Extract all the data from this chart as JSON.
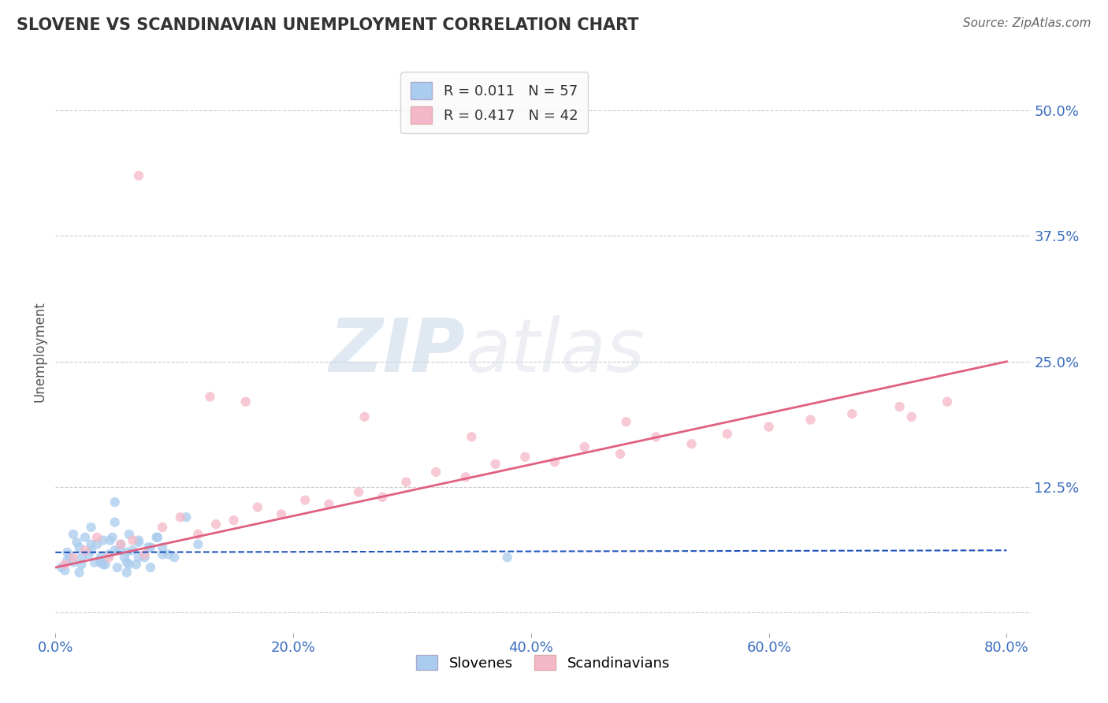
{
  "title": "SLOVENE VS SCANDINAVIAN UNEMPLOYMENT CORRELATION CHART",
  "source": "Source: ZipAtlas.com",
  "ylabel": "Unemployment",
  "yticks": [
    0.0,
    0.125,
    0.25,
    0.375,
    0.5
  ],
  "ytick_labels": [
    "",
    "12.5%",
    "25.0%",
    "37.5%",
    "50.0%"
  ],
  "xlim": [
    0.0,
    0.82
  ],
  "ylim": [
    -0.02,
    0.54
  ],
  "blue_scatter_color": "#aaccee",
  "pink_scatter_color": "#f5b8c8",
  "blue_line_color": "#2255bb",
  "pink_line_color": "#e06080",
  "axis_tick_color": "#3a6dbf",
  "R_slovene": 0.011,
  "N_slovene": 57,
  "R_scandinavian": 0.417,
  "N_scandinavian": 42,
  "slovene_x": [
    0.005,
    0.01,
    0.012,
    0.015,
    0.018,
    0.02,
    0.022,
    0.025,
    0.028,
    0.03,
    0.033,
    0.035,
    0.038,
    0.04,
    0.042,
    0.045,
    0.048,
    0.05,
    0.052,
    0.055,
    0.058,
    0.06,
    0.062,
    0.065,
    0.068,
    0.07,
    0.075,
    0.08,
    0.085,
    0.09,
    0.008,
    0.015,
    0.022,
    0.03,
    0.038,
    0.046,
    0.054,
    0.062,
    0.07,
    0.078,
    0.086,
    0.095,
    0.01,
    0.02,
    0.03,
    0.04,
    0.05,
    0.06,
    0.07,
    0.08,
    0.09,
    0.1,
    0.11,
    0.12,
    0.38,
    0.05,
    0.06
  ],
  "slovene_y": [
    0.045,
    0.06,
    0.055,
    0.05,
    0.07,
    0.065,
    0.048,
    0.075,
    0.058,
    0.062,
    0.05,
    0.068,
    0.055,
    0.072,
    0.048,
    0.058,
    0.075,
    0.062,
    0.045,
    0.068,
    0.055,
    0.05,
    0.078,
    0.062,
    0.048,
    0.07,
    0.055,
    0.065,
    0.075,
    0.058,
    0.042,
    0.078,
    0.055,
    0.068,
    0.05,
    0.072,
    0.062,
    0.048,
    0.055,
    0.065,
    0.075,
    0.058,
    0.052,
    0.04,
    0.085,
    0.048,
    0.09,
    0.06,
    0.072,
    0.045,
    0.065,
    0.055,
    0.095,
    0.068,
    0.055,
    0.11,
    0.04
  ],
  "scand_x": [
    0.008,
    0.015,
    0.025,
    0.035,
    0.045,
    0.055,
    0.065,
    0.075,
    0.09,
    0.105,
    0.12,
    0.135,
    0.15,
    0.17,
    0.19,
    0.21,
    0.23,
    0.255,
    0.275,
    0.295,
    0.32,
    0.345,
    0.37,
    0.395,
    0.42,
    0.445,
    0.475,
    0.505,
    0.535,
    0.565,
    0.6,
    0.635,
    0.67,
    0.71,
    0.75,
    0.26,
    0.16,
    0.35,
    0.48,
    0.72,
    0.07,
    0.13
  ],
  "scand_y": [
    0.048,
    0.055,
    0.062,
    0.075,
    0.055,
    0.068,
    0.072,
    0.058,
    0.085,
    0.095,
    0.078,
    0.088,
    0.092,
    0.105,
    0.098,
    0.112,
    0.108,
    0.12,
    0.115,
    0.13,
    0.14,
    0.135,
    0.148,
    0.155,
    0.15,
    0.165,
    0.158,
    0.175,
    0.168,
    0.178,
    0.185,
    0.192,
    0.198,
    0.205,
    0.21,
    0.195,
    0.21,
    0.175,
    0.19,
    0.195,
    0.435,
    0.215
  ],
  "scand_line_x0": 0.0,
  "scand_line_y0": 0.045,
  "scand_line_x1": 0.8,
  "scand_line_y1": 0.25,
  "slov_line_x0": 0.0,
  "slov_line_y0": 0.06,
  "slov_line_x1": 0.8,
  "slov_line_y1": 0.062,
  "watermark_zip": "ZIP",
  "watermark_atlas": "atlas",
  "background_color": "#ffffff",
  "grid_color": "#cccccc"
}
